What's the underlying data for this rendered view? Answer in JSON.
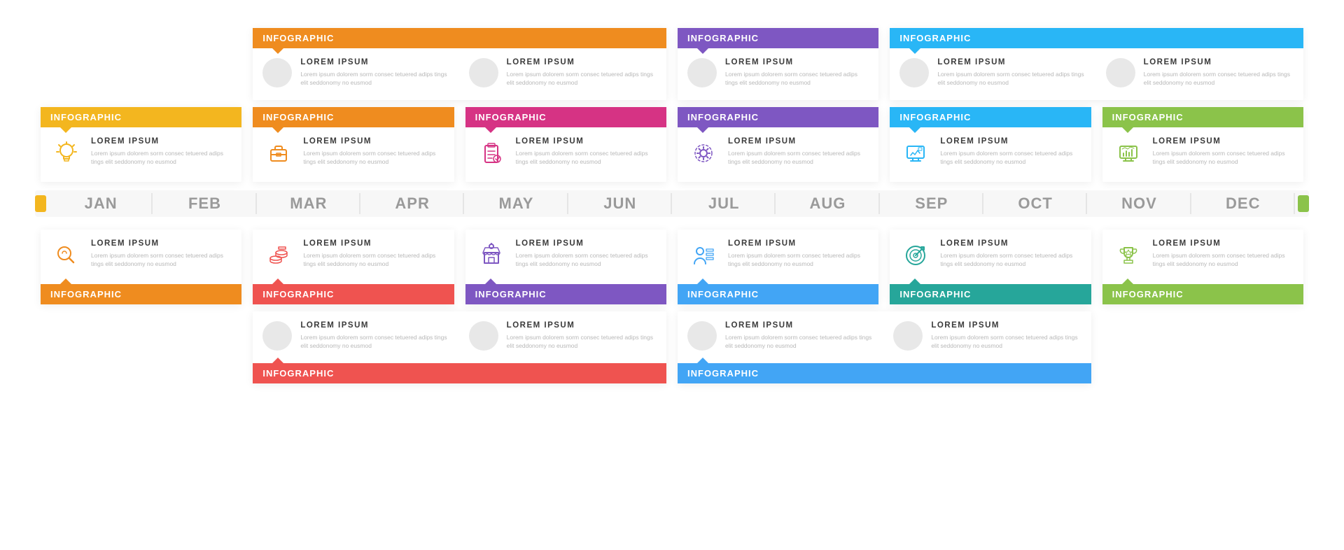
{
  "timeline": {
    "months": [
      "JAN",
      "FEB",
      "MAR",
      "APR",
      "MAY",
      "JUN",
      "JUL",
      "AUG",
      "SEP",
      "OCT",
      "NOV",
      "DEC"
    ],
    "left_cap_color": "#f3b61f",
    "right_cap_color": "#8bc34a",
    "month_color": "#9a9a9a",
    "bg": "#f7f7f7"
  },
  "card_label": "INFOGRAPHIC",
  "item_title": "LOREM IPSUM",
  "item_desc": "Lorem ipsum dolorem sorm consec tetuered adips tings elit seddonomy no eusmod",
  "cards": {
    "top_wide": [
      {
        "color": "#ef8c1f",
        "col_start": 2,
        "items": 2,
        "icon": "circle"
      },
      {
        "color": "#7e57c2",
        "col_start": 4,
        "items": 1,
        "icon": "circle",
        "span": 1
      },
      {
        "color": "#29b6f6",
        "col_start": 5,
        "items": 2,
        "icon": "circle"
      }
    ],
    "top_single": [
      {
        "color": "#f3b61f",
        "icon": "bulb"
      },
      {
        "color": "#ef8c1f",
        "icon": "briefcase"
      },
      {
        "color": "#d63384",
        "icon": "clipboard"
      },
      {
        "color": "#7e57c2",
        "icon": "gear"
      },
      {
        "color": "#29b6f6",
        "icon": "monitor"
      },
      {
        "color": "#8bc34a",
        "icon": "dashboard"
      }
    ],
    "bot_single": [
      {
        "color": "#ef8c1f",
        "icon": "search"
      },
      {
        "color": "#ef5350",
        "icon": "coins"
      },
      {
        "color": "#7e57c2",
        "icon": "store"
      },
      {
        "color": "#42a5f5",
        "icon": "person"
      },
      {
        "color": "#26a69a",
        "icon": "target"
      },
      {
        "color": "#8bc34a",
        "icon": "trophy"
      }
    ],
    "bot_wide": [
      {
        "color": "#ef5350",
        "col_start": 2,
        "items": 2,
        "icon": "circle"
      },
      {
        "color": "#42a5f5",
        "col_start": 4,
        "items": 2,
        "icon": "circle"
      }
    ]
  },
  "icon_strokes": {
    "bulb": "#f3b61f",
    "briefcase": "#ef8c1f",
    "clipboard": "#d63384",
    "gear": "#7e57c2",
    "monitor": "#29b6f6",
    "dashboard": "#8bc34a",
    "search": "#ef8c1f",
    "coins": "#ef5350",
    "store": "#7e57c2",
    "person": "#42a5f5",
    "target": "#26a69a",
    "trophy": "#8bc34a"
  }
}
